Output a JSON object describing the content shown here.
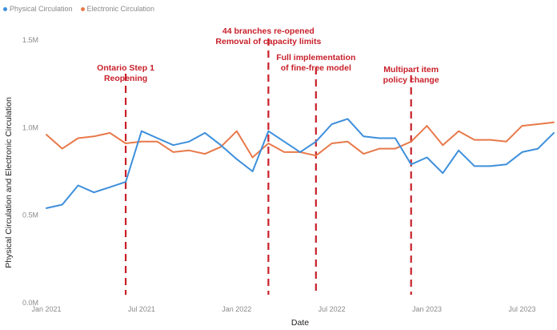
{
  "chart_data": {
    "type": "line",
    "xlabel": "Date",
    "ylabel": "Physical Circulation and Electronic Circulation",
    "ylim": [
      0,
      1.5
    ],
    "y_ticks": [
      {
        "value": 0,
        "label": "0.0M"
      },
      {
        "value": 0.5,
        "label": "0.5M"
      },
      {
        "value": 1.0,
        "label": "1.0M"
      },
      {
        "value": 1.5,
        "label": "1.5M"
      }
    ],
    "x_range": [
      "2021-01",
      "2023-09"
    ],
    "x_ticks": [
      {
        "date": "2021-01",
        "label": "Jan 2021"
      },
      {
        "date": "2021-07",
        "label": "Jul 2021"
      },
      {
        "date": "2022-01",
        "label": "Jan 2022"
      },
      {
        "date": "2022-07",
        "label": "Jul 2022"
      },
      {
        "date": "2023-01",
        "label": "Jan 2023"
      },
      {
        "date": "2023-07",
        "label": "Jul 2023"
      }
    ],
    "legend_position": "top-left",
    "grid": false,
    "x": [
      "2021-01",
      "2021-02",
      "2021-03",
      "2021-04",
      "2021-05",
      "2021-06",
      "2021-07",
      "2021-08",
      "2021-09",
      "2021-10",
      "2021-11",
      "2021-12",
      "2022-01",
      "2022-02",
      "2022-03",
      "2022-04",
      "2022-05",
      "2022-06",
      "2022-07",
      "2022-08",
      "2022-09",
      "2022-10",
      "2022-11",
      "2022-12",
      "2023-01",
      "2023-02",
      "2023-03",
      "2023-04",
      "2023-05",
      "2023-06",
      "2023-07",
      "2023-08",
      "2023-09"
    ],
    "series": [
      {
        "name": "Physical Circulation",
        "color": "#3d8fdb",
        "values": [
          0.54,
          0.56,
          0.67,
          0.63,
          0.66,
          0.69,
          0.98,
          0.94,
          0.9,
          0.92,
          0.97,
          0.9,
          0.82,
          0.75,
          0.98,
          0.92,
          0.86,
          0.92,
          1.02,
          1.05,
          0.95,
          0.94,
          0.94,
          0.79,
          0.83,
          0.74,
          0.87,
          0.78,
          0.78,
          0.79,
          0.86,
          0.88,
          0.97
        ]
      },
      {
        "name": "Electronic Circulation",
        "color": "#e8794a",
        "values": [
          0.96,
          0.88,
          0.94,
          0.95,
          0.97,
          0.91,
          0.92,
          0.92,
          0.86,
          0.87,
          0.85,
          0.89,
          0.98,
          0.83,
          0.91,
          0.86,
          0.86,
          0.84,
          0.91,
          0.92,
          0.85,
          0.88,
          0.88,
          0.92,
          1.01,
          0.9,
          0.98,
          0.93,
          0.93,
          0.92,
          1.01,
          1.02,
          1.03
        ]
      }
    ],
    "annotations": [
      {
        "date": "2021-06",
        "lines": [
          "Ontario Step 1",
          "Reopening"
        ],
        "line_color": "#c8202a"
      },
      {
        "date": "2022-03",
        "lines": [
          "44 branches re-opened",
          "Removal of capacity limits"
        ],
        "line_color": "#c8202a"
      },
      {
        "date": "2022-06",
        "lines": [
          "Full implementation",
          "of fine-free model"
        ],
        "line_color": "#c8202a"
      },
      {
        "date": "2022-12",
        "lines": [
          "Multipart item",
          "policy change"
        ],
        "line_color": "#c8202a"
      }
    ]
  }
}
